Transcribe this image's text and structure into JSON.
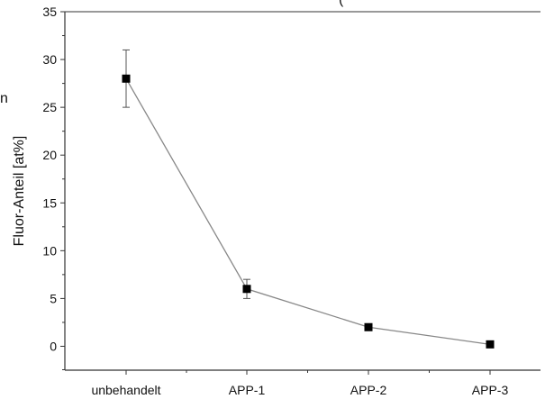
{
  "chart_data": {
    "type": "line",
    "title": "",
    "xlabel": "",
    "ylabel": "Fluor-Anteil [at%]",
    "categories": [
      "unbehandelt",
      "APP-1",
      "APP-2",
      "APP-3"
    ],
    "series": [
      {
        "values": [
          28,
          6,
          2,
          0.2
        ],
        "error": [
          3,
          1,
          0.3,
          0.2
        ]
      }
    ],
    "ylim": [
      -2.5,
      35
    ],
    "yticks": [
      0,
      5,
      10,
      15,
      20,
      25,
      30,
      35
    ],
    "grid": false,
    "legend": "none",
    "colors": {
      "line": "#888888",
      "marker": "#000000",
      "errorbar": "#555555",
      "axis": "#333333"
    }
  },
  "fragments": {
    "top_clipped": "(",
    "left_clipped": "n"
  }
}
